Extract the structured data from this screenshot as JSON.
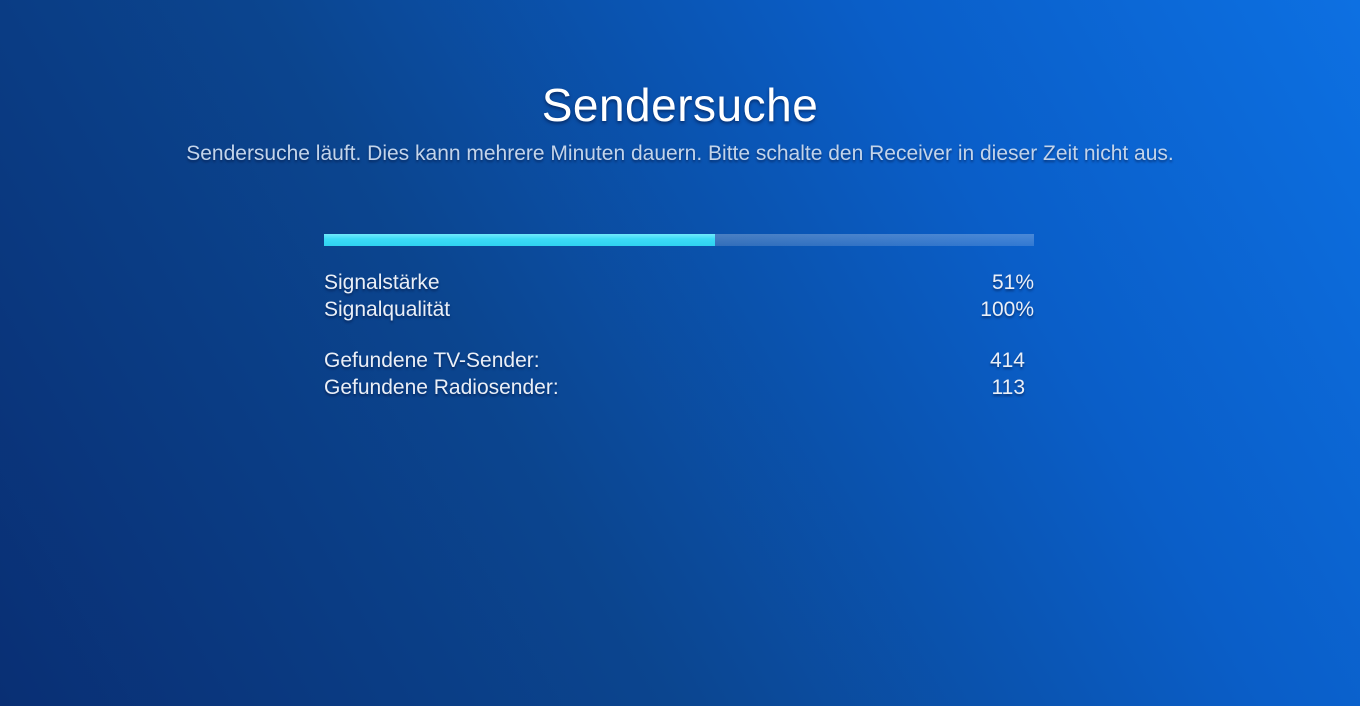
{
  "screen": {
    "title": "Sendersuche",
    "subtitle": "Sendersuche läuft. Dies kann mehrere Minuten dauern. Bitte schalte den Receiver in dieser Zeit nicht aus."
  },
  "progress": {
    "percent": 55
  },
  "signal": {
    "rows": [
      {
        "label": "Signalstärke",
        "value": "51%"
      },
      {
        "label": "Signalqualität",
        "value": "100%"
      }
    ]
  },
  "results": {
    "rows": [
      {
        "label": "Gefundene TV-Sender:",
        "value": "414"
      },
      {
        "label": "Gefundene Radiosender:",
        "value": "113"
      }
    ]
  },
  "colors": {
    "background_dark": "#092f74",
    "background_bright": "#0d70e2",
    "progress_fill": "#3cdcf7",
    "progress_track": "rgba(255,255,255,0.18)",
    "title_text": "#ffffff",
    "subtitle_text": "#c3d4ea",
    "row_text": "#eaeff7"
  }
}
